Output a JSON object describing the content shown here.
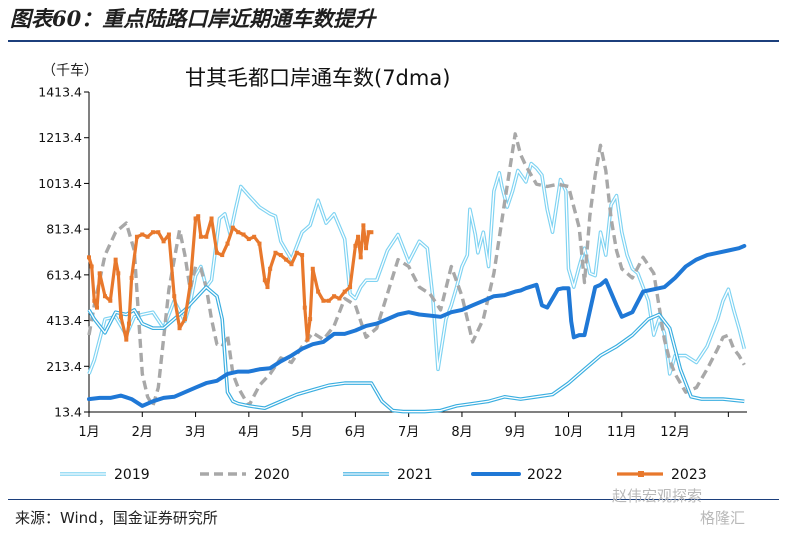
{
  "figure": {
    "title": "图表60：重点陆路口岸近期通车数提升",
    "source": "来源：Wind，国金证券研究所",
    "watermark_line1": "赵伟宏观探索",
    "watermark_line2": "格隆汇"
  },
  "chart_data": {
    "type": "line",
    "title": "甘其毛都口岸通车数(7dma)",
    "ylabel": "（千车）",
    "xlabel": "",
    "ylim": [
      13.4,
      1413.4
    ],
    "yticks": [
      "1413.4",
      "1213.4",
      "1013.4",
      "813.4",
      "613.4",
      "413.4",
      "213.4",
      "13.4"
    ],
    "ytick_values": [
      1413.4,
      1213.4,
      1013.4,
      813.4,
      613.4,
      413.4,
      213.4,
      13.4
    ],
    "xlim": [
      1,
      13.35
    ],
    "xticks": [
      "1月",
      "2月",
      "3月",
      "4月",
      "5月",
      "6月",
      "7月",
      "8月",
      "9月",
      "10月",
      "11月",
      "12月"
    ],
    "grid": false,
    "legend_position": "bottom",
    "series": [
      {
        "name": "2019",
        "color": "#7fd3f2",
        "style": "double",
        "x": [
          1.0,
          1.1,
          1.3,
          1.5,
          1.7,
          1.85,
          2.0,
          2.2,
          2.4,
          2.6,
          2.8,
          2.9,
          3.0,
          3.1,
          3.2,
          3.3,
          3.45,
          3.55,
          3.65,
          3.75,
          3.85,
          4.0,
          4.2,
          4.4,
          4.5,
          4.6,
          4.8,
          5.0,
          5.15,
          5.3,
          5.45,
          5.6,
          5.8,
          5.9,
          6.0,
          6.1,
          6.2,
          6.4,
          6.6,
          6.8,
          7.0,
          7.2,
          7.35,
          7.45,
          7.55,
          7.7,
          7.8,
          7.9,
          8.0,
          8.1,
          8.15,
          8.25,
          8.3,
          8.4,
          8.5,
          8.6,
          8.7,
          8.75,
          8.85,
          8.95,
          9.05,
          9.2,
          9.3,
          9.4,
          9.5,
          9.6,
          9.7,
          9.85,
          9.95,
          10.0,
          10.1,
          10.2,
          10.3,
          10.4,
          10.5,
          10.6,
          10.7,
          10.8,
          10.9,
          11.0,
          11.1,
          11.2,
          11.3,
          11.4,
          11.5,
          11.6,
          11.7,
          11.8,
          11.9,
          12.0,
          12.2,
          12.4,
          12.6,
          12.8,
          12.9,
          13.0,
          13.1,
          13.2,
          13.3
        ],
        "y": [
          180,
          240,
          420,
          430,
          350,
          430,
          440,
          450,
          380,
          500,
          410,
          490,
          610,
          650,
          560,
          590,
          860,
          880,
          790,
          900,
          1000,
          960,
          910,
          880,
          870,
          760,
          680,
          800,
          830,
          940,
          840,
          880,
          770,
          530,
          510,
          560,
          590,
          590,
          720,
          790,
          670,
          760,
          730,
          520,
          200,
          420,
          480,
          560,
          650,
          700,
          900,
          790,
          710,
          800,
          650,
          980,
          1060,
          1000,
          910,
          980,
          1070,
          1020,
          1100,
          1080,
          1050,
          900,
          800,
          1030,
          980,
          640,
          560,
          650,
          730,
          620,
          610,
          800,
          700,
          920,
          960,
          800,
          700,
          640,
          620,
          560,
          500,
          350,
          420,
          360,
          180,
          260,
          260,
          230,
          300,
          420,
          500,
          550,
          460,
          380,
          290
        ]
      },
      {
        "name": "2020",
        "color": "#a8a8a8",
        "style": "dashed",
        "x": [
          1.0,
          1.1,
          1.3,
          1.5,
          1.7,
          1.85,
          2.0,
          2.1,
          2.2,
          2.3,
          2.5,
          2.7,
          2.8,
          2.9,
          3.0,
          3.1,
          3.2,
          3.3,
          3.4,
          3.5,
          3.6,
          3.7,
          3.8,
          3.9,
          4.0,
          4.2,
          4.4,
          4.6,
          4.8,
          5.0,
          5.2,
          5.4,
          5.6,
          5.8,
          6.0,
          6.2,
          6.4,
          6.6,
          6.8,
          7.0,
          7.2,
          7.4,
          7.6,
          7.8,
          8.0,
          8.2,
          8.4,
          8.6,
          8.8,
          8.9,
          9.0,
          9.1,
          9.2,
          9.4,
          9.6,
          9.8,
          10.0,
          10.2,
          10.3,
          10.4,
          10.5,
          10.6,
          10.7,
          10.8,
          10.9,
          11.0,
          11.2,
          11.4,
          11.6,
          11.8,
          11.9,
          12.0,
          12.2,
          12.4,
          12.6,
          12.8,
          12.9,
          13.0,
          13.1,
          13.2,
          13.3
        ],
        "y": [
          350,
          480,
          700,
          800,
          840,
          720,
          180,
          80,
          40,
          120,
          550,
          810,
          700,
          550,
          650,
          640,
          560,
          420,
          310,
          300,
          350,
          180,
          120,
          80,
          40,
          130,
          180,
          250,
          230,
          300,
          360,
          330,
          390,
          510,
          480,
          340,
          380,
          530,
          680,
          650,
          560,
          530,
          460,
          650,
          520,
          320,
          420,
          620,
          930,
          1080,
          1230,
          1140,
          1090,
          1010,
          1000,
          1010,
          1000,
          820,
          580,
          870,
          1050,
          1180,
          1070,
          860,
          720,
          640,
          600,
          690,
          620,
          330,
          240,
          180,
          100,
          120,
          200,
          290,
          340,
          350,
          290,
          260,
          220
        ]
      },
      {
        "name": "2021",
        "color": "#3aaee0",
        "style": "double",
        "x": [
          1.0,
          1.1,
          1.3,
          1.5,
          1.7,
          1.85,
          2.0,
          2.2,
          2.4,
          2.6,
          2.8,
          3.0,
          3.2,
          3.4,
          3.5,
          3.6,
          3.7,
          3.8,
          4.0,
          4.3,
          4.6,
          4.9,
          5.2,
          5.5,
          5.8,
          6.1,
          6.3,
          6.5,
          6.7,
          6.9,
          7.1,
          7.3,
          7.6,
          7.9,
          8.2,
          8.5,
          8.8,
          9.1,
          9.4,
          9.7,
          10.0,
          10.3,
          10.6,
          10.9,
          11.2,
          11.5,
          11.7,
          11.9,
          12.1,
          12.3,
          12.5,
          12.7,
          12.9,
          13.1,
          13.3
        ],
        "y": [
          460,
          420,
          360,
          450,
          440,
          460,
          400,
          380,
          380,
          420,
          460,
          510,
          560,
          520,
          420,
          100,
          60,
          50,
          40,
          30,
          60,
          90,
          110,
          130,
          140,
          140,
          140,
          60,
          20,
          15,
          15,
          15,
          20,
          40,
          50,
          60,
          80,
          70,
          80,
          90,
          140,
          200,
          260,
          300,
          350,
          420,
          440,
          380,
          200,
          80,
          70,
          70,
          70,
          65,
          60
        ]
      },
      {
        "name": "2022",
        "color": "#1f78d6",
        "style": "solid-thick",
        "x": [
          1.0,
          1.2,
          1.4,
          1.6,
          1.8,
          2.0,
          2.2,
          2.4,
          2.6,
          2.8,
          3.0,
          3.2,
          3.4,
          3.6,
          3.8,
          4.0,
          4.2,
          4.4,
          4.6,
          4.8,
          5.0,
          5.2,
          5.4,
          5.6,
          5.8,
          6.0,
          6.2,
          6.4,
          6.6,
          6.8,
          7.0,
          7.2,
          7.4,
          7.6,
          7.8,
          8.0,
          8.2,
          8.4,
          8.6,
          8.8,
          9.0,
          9.1,
          9.2,
          9.4,
          9.5,
          9.6,
          9.8,
          9.9,
          10.0,
          10.05,
          10.1,
          10.2,
          10.3,
          10.5,
          10.6,
          10.7,
          10.9,
          11.0,
          11.2,
          11.4,
          11.6,
          11.8,
          12.0,
          12.2,
          12.4,
          12.6,
          12.8,
          13.0,
          13.2,
          13.3
        ],
        "y": [
          70,
          75,
          75,
          85,
          70,
          40,
          60,
          75,
          80,
          100,
          120,
          140,
          150,
          180,
          190,
          190,
          200,
          205,
          235,
          260,
          290,
          310,
          320,
          355,
          355,
          370,
          390,
          400,
          420,
          440,
          450,
          440,
          435,
          430,
          450,
          460,
          480,
          500,
          520,
          525,
          540,
          545,
          555,
          570,
          480,
          470,
          550,
          555,
          555,
          410,
          340,
          350,
          350,
          560,
          570,
          590,
          480,
          430,
          450,
          540,
          550,
          560,
          600,
          650,
          680,
          700,
          710,
          720,
          730,
          740
        ]
      },
      {
        "name": "2023",
        "color": "#e8782c",
        "style": "solid-markers",
        "x": [
          1.0,
          1.05,
          1.1,
          1.15,
          1.2,
          1.3,
          1.4,
          1.5,
          1.55,
          1.6,
          1.7,
          1.75,
          1.8,
          1.9,
          2.0,
          2.1,
          2.2,
          2.3,
          2.4,
          2.5,
          2.6,
          2.7,
          2.8,
          2.9,
          3.0,
          3.05,
          3.1,
          3.2,
          3.3,
          3.4,
          3.5,
          3.6,
          3.7,
          3.8,
          3.9,
          4.0,
          4.1,
          4.2,
          4.3,
          4.35,
          4.4,
          4.5,
          4.6,
          4.7,
          4.8,
          4.9,
          5.0,
          5.05,
          5.1,
          5.15,
          5.2,
          5.3,
          5.4,
          5.5,
          5.6,
          5.7,
          5.8,
          5.9,
          6.0,
          6.05,
          6.1,
          6.15,
          6.2,
          6.25,
          6.3
        ],
        "y": [
          690,
          650,
          500,
          470,
          620,
          520,
          500,
          680,
          620,
          430,
          330,
          400,
          600,
          780,
          790,
          780,
          800,
          800,
          760,
          790,
          520,
          380,
          420,
          570,
          860,
          870,
          780,
          780,
          860,
          710,
          700,
          750,
          820,
          800,
          790,
          770,
          780,
          750,
          590,
          560,
          640,
          710,
          700,
          680,
          660,
          710,
          700,
          470,
          330,
          420,
          640,
          540,
          500,
          500,
          520,
          510,
          540,
          560,
          740,
          780,
          690,
          830,
          730,
          800,
          800
        ]
      }
    ]
  }
}
